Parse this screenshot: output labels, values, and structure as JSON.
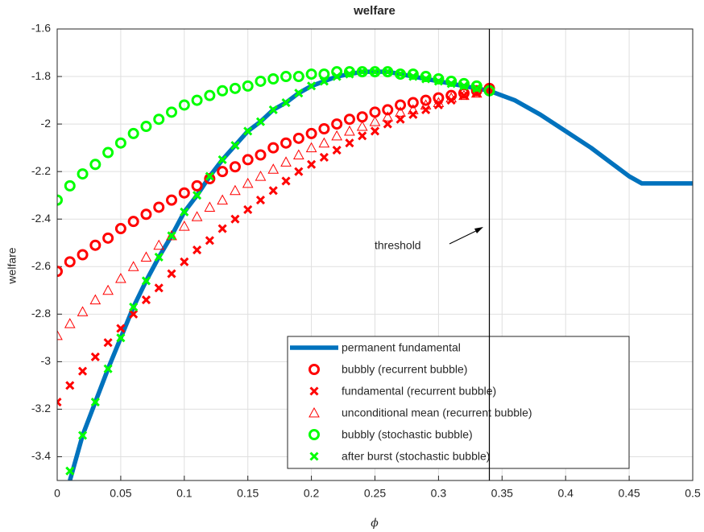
{
  "chart_data": {
    "type": "line",
    "title": "welfare",
    "x_label": "ϕ",
    "y_label": "welfare",
    "xlim": [
      0,
      0.5
    ],
    "xticks": [
      0,
      0.05,
      0.1,
      0.15,
      0.2,
      0.25,
      0.3,
      0.35,
      0.4,
      0.45,
      0.5
    ],
    "ylim": [
      -3.5,
      -1.6
    ],
    "yticks": [
      -3.4,
      -3.2,
      -3,
      -2.8,
      -2.6,
      -2.4,
      -2.2,
      -2,
      -1.8,
      -1.6
    ],
    "grid": true,
    "threshold_x": 0.34,
    "annotation": "threshold",
    "series": [
      {
        "name": "permanent fundamental",
        "color": "#0072bd",
        "marker": "line",
        "x": [
          0.01,
          0.02,
          0.03,
          0.04,
          0.05,
          0.06,
          0.07,
          0.08,
          0.09,
          0.1,
          0.11,
          0.12,
          0.13,
          0.14,
          0.15,
          0.16,
          0.17,
          0.18,
          0.19,
          0.2,
          0.21,
          0.22,
          0.23,
          0.24,
          0.25,
          0.26,
          0.27,
          0.28,
          0.29,
          0.3,
          0.31,
          0.32,
          0.33,
          0.34,
          0.36,
          0.38,
          0.4,
          0.42,
          0.44,
          0.45,
          0.46,
          0.5
        ],
        "values": [
          -3.5,
          -3.31,
          -3.17,
          -3.03,
          -2.9,
          -2.77,
          -2.66,
          -2.56,
          -2.47,
          -2.37,
          -2.3,
          -2.22,
          -2.15,
          -2.09,
          -2.03,
          -1.99,
          -1.94,
          -1.91,
          -1.87,
          -1.84,
          -1.82,
          -1.8,
          -1.79,
          -1.78,
          -1.78,
          -1.78,
          -1.79,
          -1.8,
          -1.81,
          -1.82,
          -1.83,
          -1.84,
          -1.85,
          -1.86,
          -1.9,
          -1.96,
          -2.03,
          -2.1,
          -2.18,
          -2.22,
          -2.25,
          -2.25
        ]
      },
      {
        "name": "bubbly (recurrent bubble)",
        "color": "#ff0000",
        "marker": "o",
        "x": [
          0,
          0.01,
          0.02,
          0.03,
          0.04,
          0.05,
          0.06,
          0.07,
          0.08,
          0.09,
          0.1,
          0.11,
          0.12,
          0.13,
          0.14,
          0.15,
          0.16,
          0.17,
          0.18,
          0.19,
          0.2,
          0.21,
          0.22,
          0.23,
          0.24,
          0.25,
          0.26,
          0.27,
          0.28,
          0.29,
          0.3,
          0.31,
          0.32,
          0.33,
          0.34
        ],
        "values": [
          -2.62,
          -2.58,
          -2.55,
          -2.51,
          -2.48,
          -2.44,
          -2.41,
          -2.38,
          -2.35,
          -2.32,
          -2.29,
          -2.26,
          -2.23,
          -2.2,
          -2.18,
          -2.15,
          -2.13,
          -2.1,
          -2.08,
          -2.06,
          -2.04,
          -2.02,
          -2,
          -1.98,
          -1.97,
          -1.95,
          -1.94,
          -1.92,
          -1.91,
          -1.9,
          -1.89,
          -1.88,
          -1.87,
          -1.86,
          -1.85
        ]
      },
      {
        "name": "fundamental (recurrent bubble)",
        "color": "#ff0000",
        "marker": "x",
        "x": [
          0,
          0.01,
          0.02,
          0.03,
          0.04,
          0.05,
          0.06,
          0.07,
          0.08,
          0.09,
          0.1,
          0.11,
          0.12,
          0.13,
          0.14,
          0.15,
          0.16,
          0.17,
          0.18,
          0.19,
          0.2,
          0.21,
          0.22,
          0.23,
          0.24,
          0.25,
          0.26,
          0.27,
          0.28,
          0.29,
          0.3,
          0.31,
          0.32,
          0.33,
          0.34
        ],
        "values": [
          -3.17,
          -3.1,
          -3.04,
          -2.98,
          -2.92,
          -2.86,
          -2.8,
          -2.74,
          -2.69,
          -2.63,
          -2.58,
          -2.53,
          -2.49,
          -2.44,
          -2.4,
          -2.36,
          -2.32,
          -2.28,
          -2.24,
          -2.2,
          -2.17,
          -2.14,
          -2.11,
          -2.08,
          -2.05,
          -2.03,
          -2,
          -1.98,
          -1.96,
          -1.94,
          -1.92,
          -1.9,
          -1.88,
          -1.87,
          -1.85
        ]
      },
      {
        "name": "unconditional mean (recurrent bubble)",
        "color": "#ff0000",
        "marker": "^",
        "x": [
          0,
          0.01,
          0.02,
          0.03,
          0.04,
          0.05,
          0.06,
          0.07,
          0.08,
          0.09,
          0.1,
          0.11,
          0.12,
          0.13,
          0.14,
          0.15,
          0.16,
          0.17,
          0.18,
          0.19,
          0.2,
          0.21,
          0.22,
          0.23,
          0.24,
          0.25,
          0.26,
          0.27,
          0.28,
          0.29,
          0.3,
          0.31,
          0.32,
          0.33,
          0.34
        ],
        "values": [
          -2.89,
          -2.84,
          -2.79,
          -2.74,
          -2.7,
          -2.65,
          -2.6,
          -2.56,
          -2.51,
          -2.47,
          -2.43,
          -2.39,
          -2.35,
          -2.32,
          -2.28,
          -2.25,
          -2.22,
          -2.19,
          -2.16,
          -2.13,
          -2.1,
          -2.08,
          -2.05,
          -2.03,
          -2.01,
          -1.99,
          -1.97,
          -1.95,
          -1.94,
          -1.92,
          -1.91,
          -1.89,
          -1.88,
          -1.87,
          -1.85
        ]
      },
      {
        "name": "bubbly (stochastic bubble)",
        "color": "#00ff00",
        "marker": "o",
        "x": [
          0,
          0.01,
          0.02,
          0.03,
          0.04,
          0.05,
          0.06,
          0.07,
          0.08,
          0.09,
          0.1,
          0.11,
          0.12,
          0.13,
          0.14,
          0.15,
          0.16,
          0.17,
          0.18,
          0.19,
          0.2,
          0.21,
          0.22,
          0.23,
          0.24,
          0.25,
          0.26,
          0.27,
          0.28,
          0.29,
          0.3,
          0.31,
          0.32,
          0.33,
          0.34
        ],
        "values": [
          -2.32,
          -2.26,
          -2.21,
          -2.17,
          -2.12,
          -2.08,
          -2.04,
          -2.01,
          -1.98,
          -1.95,
          -1.92,
          -1.9,
          -1.88,
          -1.86,
          -1.85,
          -1.84,
          -1.82,
          -1.81,
          -1.8,
          -1.8,
          -1.79,
          -1.79,
          -1.78,
          -1.78,
          -1.78,
          -1.78,
          -1.78,
          -1.79,
          -1.79,
          -1.8,
          -1.81,
          -1.82,
          -1.83,
          -1.84,
          -1.86
        ]
      },
      {
        "name": "after burst (stochastic bubble)",
        "color": "#00ff00",
        "marker": "x",
        "x": [
          0.01,
          0.02,
          0.03,
          0.04,
          0.05,
          0.06,
          0.07,
          0.08,
          0.09,
          0.1,
          0.11,
          0.12,
          0.13,
          0.14,
          0.15,
          0.16,
          0.17,
          0.18,
          0.19,
          0.2,
          0.21,
          0.22,
          0.23,
          0.24,
          0.25,
          0.26,
          0.27,
          0.28,
          0.29,
          0.3,
          0.31,
          0.32,
          0.33
        ],
        "values": [
          -3.46,
          -3.31,
          -3.17,
          -3.03,
          -2.9,
          -2.77,
          -2.66,
          -2.56,
          -2.47,
          -2.37,
          -2.3,
          -2.22,
          -2.15,
          -2.09,
          -2.03,
          -1.99,
          -1.94,
          -1.91,
          -1.87,
          -1.84,
          -1.82,
          -1.8,
          -1.79,
          -1.78,
          -1.78,
          -1.78,
          -1.79,
          -1.8,
          -1.81,
          -1.82,
          -1.83,
          -1.84,
          -1.85
        ]
      }
    ]
  }
}
